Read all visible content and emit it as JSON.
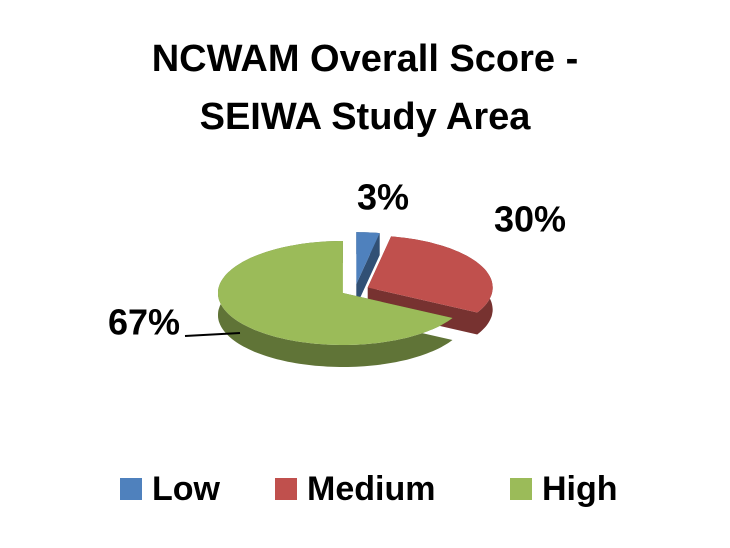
{
  "chart_data": {
    "type": "pie3d",
    "title": "NCWAM Overall Score - SEIWA Study Area",
    "categories": [
      "Low",
      "Medium",
      "High"
    ],
    "values": [
      3,
      30,
      67
    ],
    "value_labels": [
      "3%",
      "30%",
      "67%"
    ],
    "colors": [
      "#4f81bd",
      "#c0504d",
      "#9bbb59"
    ],
    "legend": "bottom"
  }
}
